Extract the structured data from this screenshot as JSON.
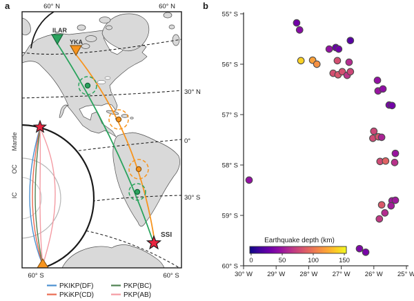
{
  "panel_a": {
    "label": "a",
    "graticule_labels": {
      "top": [
        "60° N",
        "60° N"
      ],
      "bottom": [
        "60° S",
        "60° S"
      ],
      "right": [
        "30° N",
        "0°",
        "30° S"
      ]
    },
    "stations": [
      {
        "name": "ILAR",
        "color": "#2aa35d"
      },
      {
        "name": "YKA",
        "color": "#f7941e"
      }
    ],
    "event_label": "SSI",
    "inset": {
      "shell_labels": [
        "Mantle",
        "OC",
        "IC"
      ]
    },
    "legend": [
      {
        "label": "PKIKP(DF)",
        "color": "#4a8fd0"
      },
      {
        "label": "PKiKP(CD)",
        "color": "#ea6a50"
      },
      {
        "label": "PKP(BC)",
        "color": "#4e8050"
      },
      {
        "label": "PKP(AB)",
        "color": "#f49aa2"
      }
    ]
  },
  "panel_b": {
    "label": "b"
  },
  "colors": {
    "land": "#d9d9d9",
    "coast": "#4d4d4d",
    "green_path": "#2aa35d",
    "green_dark": "#17633a",
    "orange_path": "#f7941e",
    "orange_dark": "#8a5512",
    "star_red": "#e8243f",
    "star_stroke": "#1a1a1a",
    "ray_df_blue": "#4a8fd0",
    "ray_cd_orange": "#ea6a50",
    "ray_bc_green": "#4e8050",
    "ray_ab_pink": "#f49aa2",
    "point_stroke": "#4a4a4a"
  },
  "chart_data": {
    "type": "scatter",
    "title": "",
    "x_tick_labels": [
      "30° W",
      "29° W",
      "28° W",
      "27° W",
      "26° W",
      "25° W"
    ],
    "y_tick_labels": [
      "55° S",
      "56° S",
      "57° S",
      "58° S",
      "59° S",
      "60° S"
    ],
    "x_axis": {
      "unit": "degrees west",
      "range": [
        30,
        24.94
      ],
      "direction": "west-to-east"
    },
    "y_axis": {
      "unit": "degrees south",
      "range": [
        55,
        60
      ],
      "direction": "north-to-south"
    },
    "grid": false,
    "colorbar": {
      "title": "Earthquake depth (km)",
      "tick_labels": [
        "0",
        "50",
        "100",
        "150"
      ],
      "ticks": [
        0,
        50,
        100,
        150
      ],
      "min": 0,
      "max": 160,
      "colormap": "plasma"
    },
    "points": [
      {
        "lon_w": 28.37,
        "lat_s": 55.18,
        "depth_km": 35
      },
      {
        "lon_w": 28.28,
        "lat_s": 55.32,
        "depth_km": 45
      },
      {
        "lon_w": 26.72,
        "lat_s": 55.53,
        "depth_km": 25
      },
      {
        "lon_w": 27.37,
        "lat_s": 55.7,
        "depth_km": 50
      },
      {
        "lon_w": 27.17,
        "lat_s": 55.67,
        "depth_km": 30
      },
      {
        "lon_w": 27.08,
        "lat_s": 55.7,
        "depth_km": 35
      },
      {
        "lon_w": 28.24,
        "lat_s": 55.93,
        "depth_km": 145
      },
      {
        "lon_w": 27.88,
        "lat_s": 55.92,
        "depth_km": 125
      },
      {
        "lon_w": 27.75,
        "lat_s": 56.0,
        "depth_km": 118
      },
      {
        "lon_w": 27.12,
        "lat_s": 55.93,
        "depth_km": 85
      },
      {
        "lon_w": 26.76,
        "lat_s": 55.96,
        "depth_km": 65
      },
      {
        "lon_w": 27.25,
        "lat_s": 56.18,
        "depth_km": 85
      },
      {
        "lon_w": 27.1,
        "lat_s": 56.21,
        "depth_km": 88
      },
      {
        "lon_w": 26.97,
        "lat_s": 56.15,
        "depth_km": 85
      },
      {
        "lon_w": 26.82,
        "lat_s": 56.22,
        "depth_km": 70
      },
      {
        "lon_w": 26.72,
        "lat_s": 56.15,
        "depth_km": 80
      },
      {
        "lon_w": 25.89,
        "lat_s": 56.32,
        "depth_km": 50
      },
      {
        "lon_w": 25.87,
        "lat_s": 56.53,
        "depth_km": 52
      },
      {
        "lon_w": 25.72,
        "lat_s": 56.49,
        "depth_km": 48
      },
      {
        "lon_w": 25.53,
        "lat_s": 56.81,
        "depth_km": 38
      },
      {
        "lon_w": 25.44,
        "lat_s": 56.82,
        "depth_km": 36
      },
      {
        "lon_w": 26.0,
        "lat_s": 57.33,
        "depth_km": 80
      },
      {
        "lon_w": 26.03,
        "lat_s": 57.47,
        "depth_km": 82
      },
      {
        "lon_w": 25.86,
        "lat_s": 57.44,
        "depth_km": 88
      },
      {
        "lon_w": 25.76,
        "lat_s": 57.45,
        "depth_km": 60
      },
      {
        "lon_w": 25.34,
        "lat_s": 57.77,
        "depth_km": 52
      },
      {
        "lon_w": 25.81,
        "lat_s": 57.93,
        "depth_km": 82
      },
      {
        "lon_w": 25.64,
        "lat_s": 57.92,
        "depth_km": 95
      },
      {
        "lon_w": 25.36,
        "lat_s": 57.95,
        "depth_km": 68
      },
      {
        "lon_w": 29.83,
        "lat_s": 58.3,
        "depth_km": 50
      },
      {
        "lon_w": 25.76,
        "lat_s": 58.79,
        "depth_km": 90
      },
      {
        "lon_w": 25.44,
        "lat_s": 58.71,
        "depth_km": 55
      },
      {
        "lon_w": 25.34,
        "lat_s": 58.7,
        "depth_km": 55
      },
      {
        "lon_w": 25.47,
        "lat_s": 58.81,
        "depth_km": 57
      },
      {
        "lon_w": 25.66,
        "lat_s": 58.95,
        "depth_km": 65
      },
      {
        "lon_w": 25.83,
        "lat_s": 59.07,
        "depth_km": 72
      },
      {
        "lon_w": 26.44,
        "lat_s": 59.66,
        "depth_km": 40
      },
      {
        "lon_w": 26.25,
        "lat_s": 59.73,
        "depth_km": 38
      }
    ]
  }
}
